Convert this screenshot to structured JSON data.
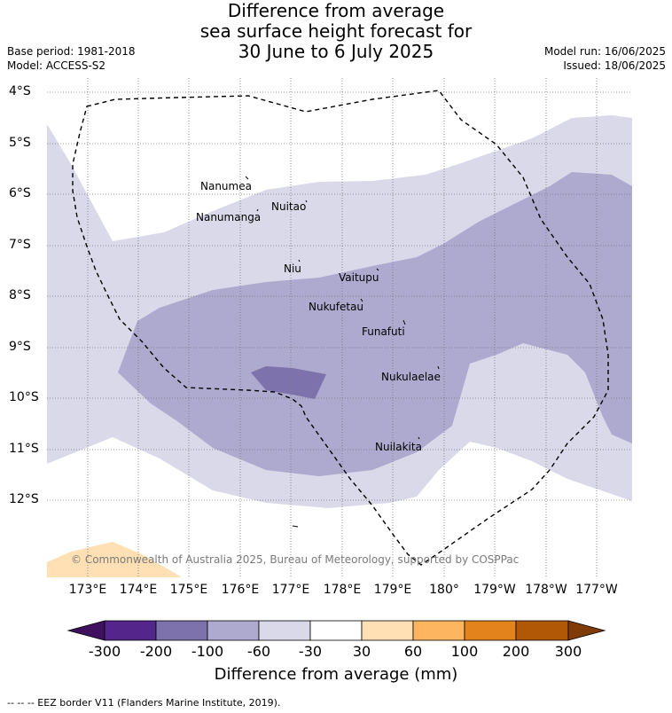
{
  "title": {
    "line1": "Difference from average",
    "line2": "sea surface height forecast for",
    "line3": "30 June to 6 July 2025"
  },
  "meta": {
    "base_period": "Base period: 1981-2018",
    "model": "Model: ACCESS-S2",
    "model_run": "Model run: 16/06/2025",
    "issued": "Issued: 18/06/2025"
  },
  "lat_labels": [
    "4°S",
    "5°S",
    "6°S",
    "7°S",
    "8°S",
    "9°S",
    "10°S",
    "11°S",
    "12°S"
  ],
  "lon_labels": [
    "173°E",
    "174°E",
    "175°E",
    "176°E",
    "177°E",
    "178°E",
    "179°E",
    "180°",
    "179°W",
    "178°W",
    "177°W"
  ],
  "places": [
    {
      "name": "Nanumea"
    },
    {
      "name": "Nanumanga"
    },
    {
      "name": "Nuitao"
    },
    {
      "name": "Niu"
    },
    {
      "name": "Vaitupu"
    },
    {
      "name": "Nukufetau"
    },
    {
      "name": "Funafuti"
    },
    {
      "name": "Nukulaelae"
    },
    {
      "name": "Nuilakita"
    }
  ],
  "copyright": "© Commonwealth of Australia 2025, Bureau of Meteorology, supported by COSPPac",
  "colorbar": {
    "labels": [
      "-300",
      "-200",
      "-100",
      "-60",
      "-30",
      "30",
      "60",
      "100",
      "200",
      "300"
    ],
    "colors": [
      "#3f1060",
      "#54268c",
      "#7e72ac",
      "#aea9cf",
      "#d9d9e9",
      "#ffffff",
      "#fee0b4",
      "#fdb55f",
      "#e2831b",
      "#b15807",
      "#7f3b08"
    ],
    "title": "Difference from average (mm)"
  },
  "legend": {
    "eez": "-- -- -- EEZ border V11 (Flanders Marine Institute, 2019)."
  }
}
